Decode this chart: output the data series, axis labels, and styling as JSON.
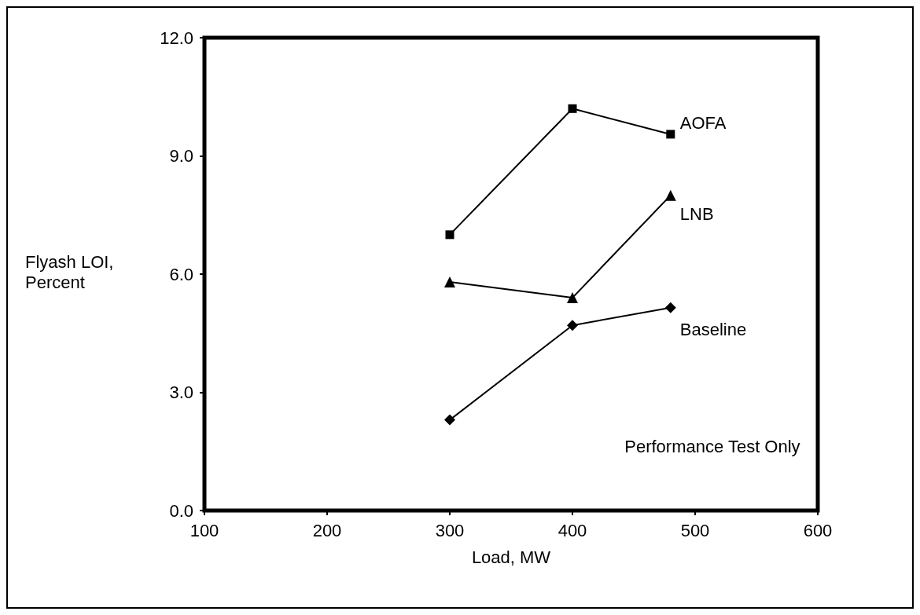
{
  "chart_data": {
    "type": "line",
    "xlabel": "Load, MW",
    "ylabel": "Flyash LOI, Percent",
    "annotations": [
      "Performance Test Only"
    ],
    "series": [
      {
        "name": "AOFA",
        "color": "#000000",
        "marker": "square",
        "x": [
          300,
          400,
          480
        ],
        "values": [
          7.0,
          10.2,
          9.55
        ]
      },
      {
        "name": "LNB",
        "color": "#000000",
        "marker": "triangle",
        "x": [
          300,
          400,
          480
        ],
        "values": [
          5.8,
          5.4,
          8.0
        ]
      },
      {
        "name": "Baseline",
        "color": "#000000",
        "marker": "diamond",
        "x": [
          300,
          400,
          480
        ],
        "values": [
          2.3,
          4.7,
          5.15
        ]
      }
    ],
    "xlim": [
      100,
      600
    ],
    "xticks": [
      100,
      200,
      300,
      400,
      500,
      600
    ],
    "ylim": [
      0,
      12
    ],
    "yticks": [
      {
        "value": 0,
        "label": "0.0"
      },
      {
        "value": 3,
        "label": "3.0"
      },
      {
        "value": 6,
        "label": "6.0"
      },
      {
        "value": 9,
        "label": "9.0"
      },
      {
        "value": 12,
        "label": "12.0"
      }
    ],
    "grid": false,
    "legend": false,
    "line_style": "solid"
  }
}
